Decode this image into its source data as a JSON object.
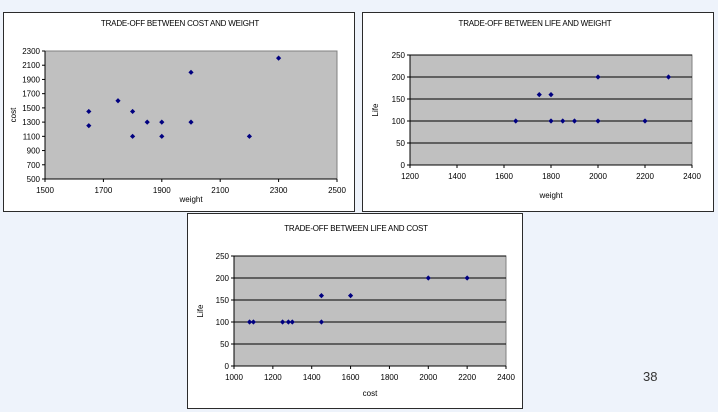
{
  "page_number": "38",
  "colors": {
    "slide_background": "#eef3fb",
    "plot_area": "#c0c0c0",
    "marker": "#000080",
    "gridline": "#000000"
  },
  "chart_data": [
    {
      "type": "scatter",
      "title": "TRADE-OFF BETWEEN COST AND WEIGHT",
      "xlabel": "weight",
      "ylabel": "cost",
      "xlim": [
        1500,
        2500
      ],
      "ylim": [
        500,
        2300
      ],
      "xticks": [
        "1500",
        "1700",
        "1900",
        "2100",
        "2300",
        "2500"
      ],
      "yticks": [
        "500",
        "700",
        "900",
        "1100",
        "1300",
        "1500",
        "1700",
        "1900",
        "2100",
        "2300"
      ],
      "grid": "none",
      "marker": "diamond",
      "series": [
        {
          "points": [
            {
              "x": 1650,
              "y": 1450
            },
            {
              "x": 1650,
              "y": 1250
            },
            {
              "x": 1750,
              "y": 1600
            },
            {
              "x": 1800,
              "y": 1450
            },
            {
              "x": 1800,
              "y": 1100
            },
            {
              "x": 1850,
              "y": 1300
            },
            {
              "x": 1900,
              "y": 1300
            },
            {
              "x": 1900,
              "y": 1100
            },
            {
              "x": 2000,
              "y": 2000
            },
            {
              "x": 2000,
              "y": 1300
            },
            {
              "x": 2200,
              "y": 1100
            },
            {
              "x": 2300,
              "y": 2200
            }
          ]
        }
      ]
    },
    {
      "type": "scatter",
      "title": "TRADE-OFF BETWEEN LIFE AND WEIGHT",
      "xlabel": "weight",
      "ylabel": "Life",
      "xlim": [
        1200,
        2400
      ],
      "ylim": [
        0,
        250
      ],
      "xticks": [
        "1200",
        "1400",
        "1600",
        "1800",
        "2000",
        "2200",
        "2400"
      ],
      "yticks": [
        "0",
        "50",
        "100",
        "150",
        "200",
        "250"
      ],
      "grid": "horizontal",
      "marker": "diamond",
      "series": [
        {
          "points": [
            {
              "x": 1650,
              "y": 100
            },
            {
              "x": 1750,
              "y": 160
            },
            {
              "x": 1800,
              "y": 160
            },
            {
              "x": 1800,
              "y": 100
            },
            {
              "x": 1850,
              "y": 100
            },
            {
              "x": 1900,
              "y": 100
            },
            {
              "x": 2000,
              "y": 200
            },
            {
              "x": 2000,
              "y": 100
            },
            {
              "x": 2200,
              "y": 100
            },
            {
              "x": 2300,
              "y": 200
            }
          ]
        }
      ]
    },
    {
      "type": "scatter",
      "title": "TRADE-OFF BETWEEN LIFE AND COST",
      "xlabel": "cost",
      "ylabel": "Life",
      "xlim": [
        1000,
        2400
      ],
      "ylim": [
        0,
        250
      ],
      "xticks": [
        "1000",
        "1200",
        "1400",
        "1600",
        "1800",
        "2000",
        "2200",
        "2400"
      ],
      "yticks": [
        "0",
        "50",
        "100",
        "150",
        "200",
        "250"
      ],
      "grid": "horizontal",
      "marker": "diamond",
      "series": [
        {
          "points": [
            {
              "x": 1080,
              "y": 100
            },
            {
              "x": 1100,
              "y": 100
            },
            {
              "x": 1250,
              "y": 100
            },
            {
              "x": 1280,
              "y": 100
            },
            {
              "x": 1300,
              "y": 100
            },
            {
              "x": 1450,
              "y": 160
            },
            {
              "x": 1450,
              "y": 100
            },
            {
              "x": 1600,
              "y": 160
            },
            {
              "x": 2000,
              "y": 200
            },
            {
              "x": 2200,
              "y": 200
            }
          ]
        }
      ]
    }
  ]
}
